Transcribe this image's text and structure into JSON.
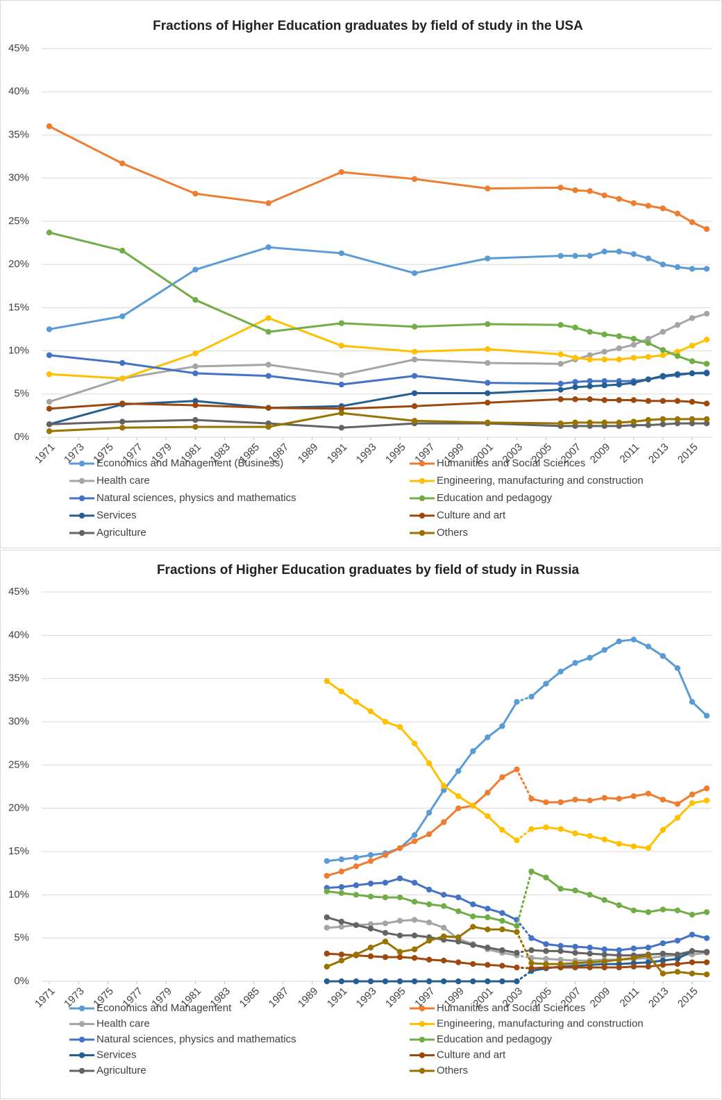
{
  "chart_data": [
    {
      "type": "line",
      "title": "Fractions of Higher Education graduates by field of study in the USA",
      "x": [
        1971,
        1976,
        1981,
        1986,
        1991,
        1996,
        2001,
        2006,
        2007,
        2008,
        2009,
        2010,
        2011,
        2012,
        2013,
        2014,
        2015,
        2016
      ],
      "xlim": [
        1971,
        2016
      ],
      "xticks": [
        1971,
        1973,
        1975,
        1977,
        1979,
        1981,
        1983,
        1985,
        1987,
        1989,
        1991,
        1993,
        1995,
        1997,
        1999,
        2001,
        2003,
        2005,
        2007,
        2009,
        2011,
        2013,
        2015
      ],
      "ylim": [
        0,
        45
      ],
      "yticks": [
        {
          "value": 0,
          "label": "0%"
        },
        {
          "value": 5,
          "label": "5%"
        },
        {
          "value": 10,
          "label": "10%"
        },
        {
          "value": 15,
          "label": "15%"
        },
        {
          "value": 20,
          "label": "20%"
        },
        {
          "value": 25,
          "label": "25%"
        },
        {
          "value": 30,
          "label": "30%"
        },
        {
          "value": 35,
          "label": "35%"
        },
        {
          "value": 40,
          "label": "40%"
        },
        {
          "value": 45,
          "label": "45%"
        }
      ],
      "grid": true,
      "series": [
        {
          "name": "Economics and Management (Business)",
          "color": "#5b9bd5",
          "values": [
            12.5,
            14.0,
            19.4,
            22.0,
            21.3,
            19.0,
            20.7,
            21.0,
            21.0,
            21.0,
            21.5,
            21.5,
            21.2,
            20.7,
            20.0,
            19.7,
            19.5,
            19.5
          ]
        },
        {
          "name": "Humanities and Social Sciences",
          "color": "#ed7d31",
          "values": [
            36.0,
            31.7,
            28.2,
            27.1,
            30.7,
            29.9,
            28.8,
            28.9,
            28.6,
            28.5,
            28.0,
            27.6,
            27.1,
            26.8,
            26.5,
            25.9,
            24.9,
            24.1
          ]
        },
        {
          "name": "Health care",
          "color": "#a5a5a5",
          "values": [
            4.1,
            6.8,
            8.2,
            8.4,
            7.2,
            9.0,
            8.6,
            8.5,
            9.0,
            9.5,
            9.9,
            10.3,
            10.7,
            11.4,
            12.2,
            13.0,
            13.8,
            14.3
          ]
        },
        {
          "name": "Engineering, manufacturing and construction",
          "color": "#ffc000",
          "values": [
            7.3,
            6.8,
            9.7,
            13.8,
            10.6,
            9.9,
            10.2,
            9.6,
            9.2,
            9.0,
            9.0,
            9.0,
            9.2,
            9.3,
            9.5,
            9.9,
            10.6,
            11.3
          ]
        },
        {
          "name": "Natural sciences, physics and mathematics",
          "color": "#4472c4",
          "values": [
            9.5,
            8.6,
            7.4,
            7.1,
            6.1,
            7.1,
            6.3,
            6.2,
            6.4,
            6.5,
            6.5,
            6.5,
            6.5,
            6.7,
            7.0,
            7.2,
            7.4,
            7.5
          ]
        },
        {
          "name": "Education and pedagogy",
          "color": "#70ad47",
          "values": [
            23.7,
            21.6,
            15.9,
            12.2,
            13.2,
            12.8,
            13.1,
            13.0,
            12.7,
            12.2,
            11.9,
            11.7,
            11.4,
            10.9,
            10.1,
            9.4,
            8.8,
            8.5
          ]
        },
        {
          "name": "Services",
          "color": "#255e91",
          "values": [
            1.5,
            3.8,
            4.2,
            3.4,
            3.6,
            5.1,
            5.1,
            5.5,
            5.8,
            5.9,
            6.0,
            6.1,
            6.3,
            6.7,
            7.1,
            7.3,
            7.4,
            7.4
          ]
        },
        {
          "name": "Culture and art",
          "color": "#9e480e",
          "values": [
            3.3,
            3.9,
            3.7,
            3.4,
            3.3,
            3.6,
            4.0,
            4.4,
            4.4,
            4.4,
            4.3,
            4.3,
            4.3,
            4.2,
            4.2,
            4.2,
            4.1,
            3.9
          ]
        },
        {
          "name": "Agriculture",
          "color": "#636363",
          "values": [
            1.5,
            1.8,
            2.0,
            1.6,
            1.1,
            1.6,
            1.6,
            1.3,
            1.3,
            1.3,
            1.3,
            1.3,
            1.4,
            1.4,
            1.5,
            1.6,
            1.6,
            1.6
          ]
        },
        {
          "name": "Others",
          "color": "#997300",
          "values": [
            0.7,
            1.1,
            1.2,
            1.2,
            2.8,
            1.9,
            1.7,
            1.6,
            1.7,
            1.7,
            1.7,
            1.7,
            1.8,
            2.0,
            2.1,
            2.1,
            2.1,
            2.1
          ]
        }
      ]
    },
    {
      "type": "line",
      "title": "Fractions of Higher Education graduates by field of study in Russia",
      "x": [
        1990,
        1991,
        1992,
        1993,
        1994,
        1995,
        1996,
        1997,
        1998,
        1999,
        2000,
        2001,
        2002,
        2003,
        2004,
        2005,
        2006,
        2007,
        2008,
        2009,
        2010,
        2011,
        2012,
        2013,
        2014,
        2015,
        2016
      ],
      "xlim": [
        1971,
        2016
      ],
      "xticks": [
        1971,
        1973,
        1975,
        1977,
        1979,
        1981,
        1983,
        1985,
        1987,
        1989,
        1991,
        1993,
        1995,
        1997,
        1999,
        2001,
        2003,
        2005,
        2007,
        2009,
        2011,
        2013,
        2015
      ],
      "ylim": [
        0,
        45
      ],
      "yticks": [
        {
          "value": 0,
          "label": "0%"
        },
        {
          "value": 5,
          "label": "5%"
        },
        {
          "value": 10,
          "label": "10%"
        },
        {
          "value": 15,
          "label": "15%"
        },
        {
          "value": 20,
          "label": "20%"
        },
        {
          "value": 25,
          "label": "25%"
        },
        {
          "value": 30,
          "label": "30%"
        },
        {
          "value": 35,
          "label": "35%"
        },
        {
          "value": 40,
          "label": "40%"
        },
        {
          "value": 45,
          "label": "45%"
        }
      ],
      "grid": true,
      "dotted_between": [
        2003,
        2004
      ],
      "series": [
        {
          "name": "Economics and Management",
          "color": "#5b9bd5",
          "values": [
            13.9,
            14.1,
            14.3,
            14.6,
            14.8,
            15.4,
            16.9,
            19.5,
            22.1,
            24.3,
            26.6,
            28.2,
            29.5,
            32.3,
            32.9,
            34.4,
            35.8,
            36.8,
            37.4,
            38.3,
            39.3,
            39.5,
            38.7,
            37.6,
            36.2,
            32.3,
            30.7
          ]
        },
        {
          "name": "Humanities and Social Sciences",
          "color": "#ed7d31",
          "values": [
            12.2,
            12.7,
            13.3,
            13.9,
            14.6,
            15.4,
            16.2,
            17.0,
            18.4,
            20.0,
            20.3,
            21.8,
            23.6,
            24.5,
            21.1,
            20.7,
            20.7,
            21.0,
            20.9,
            21.2,
            21.1,
            21.4,
            21.7,
            21.0,
            20.5,
            21.6,
            22.3
          ]
        },
        {
          "name": "Health care",
          "color": "#a5a5a5",
          "values": [
            6.2,
            6.3,
            6.5,
            6.6,
            6.7,
            7.0,
            7.1,
            6.8,
            6.2,
            4.9,
            4.3,
            3.7,
            3.3,
            3.0,
            2.7,
            2.6,
            2.5,
            2.4,
            2.4,
            2.5,
            2.5,
            2.6,
            2.7,
            2.9,
            3.0,
            3.1,
            3.3
          ]
        },
        {
          "name": "Engineering, manufacturing and construction",
          "color": "#ffc000",
          "values": [
            34.7,
            33.5,
            32.3,
            31.2,
            30.0,
            29.4,
            27.5,
            25.2,
            22.6,
            21.4,
            20.3,
            19.1,
            17.5,
            16.3,
            17.6,
            17.8,
            17.6,
            17.1,
            16.8,
            16.4,
            15.9,
            15.6,
            15.4,
            17.5,
            18.9,
            20.6,
            20.9
          ]
        },
        {
          "name": "Natural sciences, physics and mathematics",
          "color": "#4472c4",
          "values": [
            10.8,
            10.9,
            11.1,
            11.3,
            11.4,
            11.9,
            11.4,
            10.6,
            10.0,
            9.7,
            8.9,
            8.4,
            7.9,
            7.1,
            5.0,
            4.3,
            4.1,
            4.0,
            3.9,
            3.7,
            3.6,
            3.8,
            3.9,
            4.4,
            4.7,
            5.4,
            5.0
          ]
        },
        {
          "name": "Education and pedagogy",
          "color": "#70ad47",
          "values": [
            10.4,
            10.2,
            10.0,
            9.8,
            9.7,
            9.7,
            9.2,
            8.9,
            8.7,
            8.1,
            7.5,
            7.4,
            7.0,
            6.4,
            12.7,
            12.0,
            10.7,
            10.5,
            10.0,
            9.4,
            8.8,
            8.2,
            8.0,
            8.3,
            8.2,
            7.7,
            8.0
          ]
        },
        {
          "name": "Services",
          "color": "#255e91",
          "values": [
            0,
            0,
            0,
            0,
            0,
            0,
            0,
            0,
            0,
            0,
            0,
            0,
            0,
            0,
            1.2,
            1.5,
            1.7,
            1.8,
            1.9,
            2.0,
            2.0,
            2.1,
            2.2,
            2.4,
            2.6,
            3.5,
            3.4
          ]
        },
        {
          "name": "Culture and art",
          "color": "#9e480e",
          "values": [
            3.2,
            3.1,
            3.0,
            2.9,
            2.8,
            2.8,
            2.7,
            2.5,
            2.4,
            2.2,
            2.0,
            1.9,
            1.8,
            1.6,
            1.5,
            1.6,
            1.6,
            1.6,
            1.6,
            1.6,
            1.6,
            1.7,
            1.7,
            1.9,
            2.0,
            2.2,
            2.2
          ]
        },
        {
          "name": "Agriculture",
          "color": "#636363",
          "values": [
            7.4,
            6.9,
            6.5,
            6.1,
            5.6,
            5.3,
            5.3,
            5.1,
            4.8,
            4.6,
            4.2,
            3.9,
            3.6,
            3.3,
            3.6,
            3.5,
            3.5,
            3.3,
            3.2,
            3.1,
            3.0,
            3.0,
            3.1,
            3.2,
            3.1,
            3.5,
            3.4
          ]
        },
        {
          "name": "Others",
          "color": "#997300",
          "values": [
            1.7,
            2.4,
            3.1,
            3.9,
            4.6,
            3.4,
            3.7,
            4.7,
            5.2,
            5.1,
            6.3,
            6.0,
            6.0,
            5.7,
            2.1,
            2.0,
            2.0,
            2.1,
            2.2,
            2.3,
            2.5,
            2.7,
            3.0,
            0.9,
            1.1,
            0.9,
            0.8
          ]
        }
      ]
    }
  ]
}
